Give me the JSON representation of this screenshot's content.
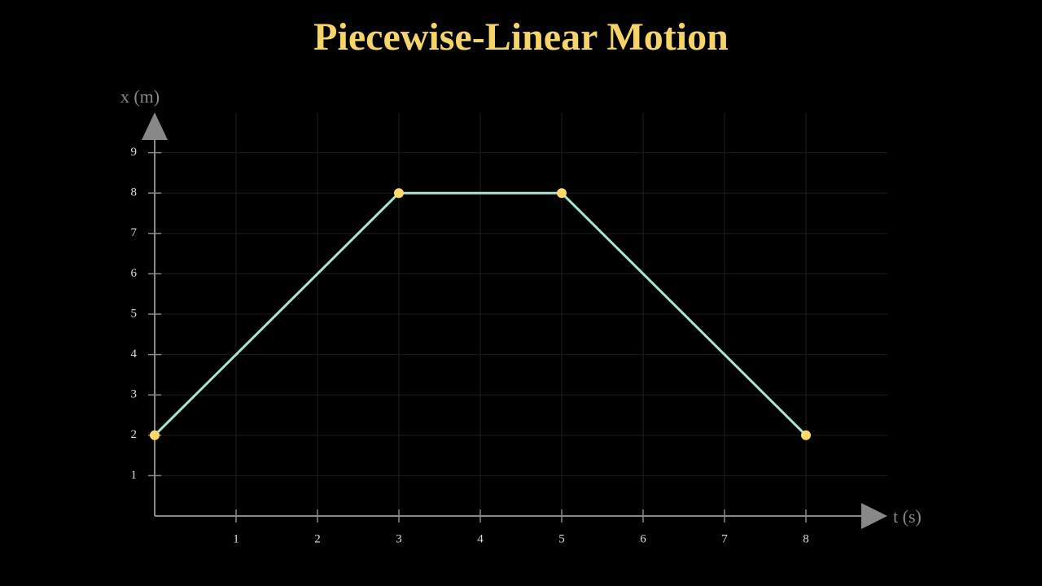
{
  "chart_data": {
    "type": "line",
    "title": "Piecewise-Linear Motion",
    "x_label": "t (s)",
    "y_label": "x (m)",
    "x": [
      0,
      3,
      5,
      8
    ],
    "series": [
      {
        "color": "#a8e6cf",
        "marker_color": "#ffd966",
        "values": [
          2,
          8,
          8,
          2
        ]
      }
    ],
    "xlim": [
      0,
      9
    ],
    "ylim": [
      0,
      10
    ],
    "xticks": [
      1,
      2,
      3,
      4,
      5,
      6,
      7,
      8
    ],
    "yticks": [
      1,
      2,
      3,
      4,
      5,
      6,
      7,
      8,
      9
    ],
    "grid": true,
    "title_color": "#f5d469",
    "axis_color": "#888888"
  }
}
